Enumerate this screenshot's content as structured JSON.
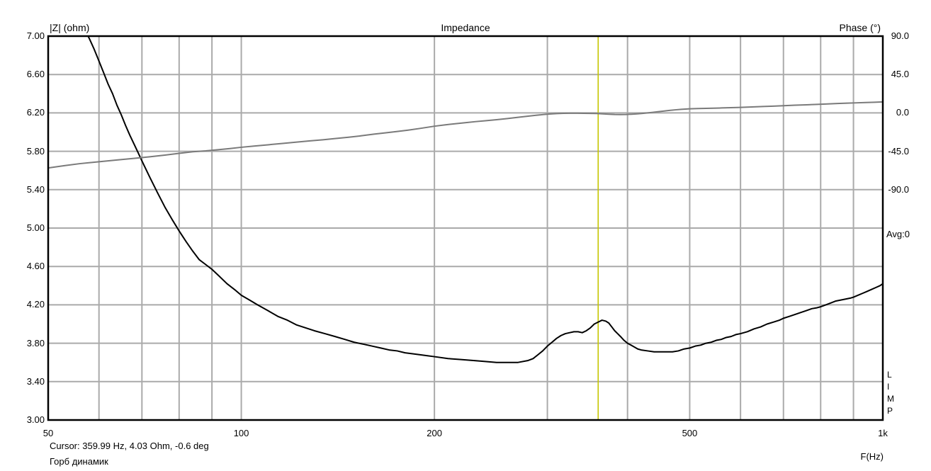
{
  "header": {
    "title": "Impedance",
    "left_axis_label": "|Z| (ohm)",
    "right_axis_label": "Phase (°)"
  },
  "side": {
    "avg_label": "Avg:0",
    "program_name": "LIMP"
  },
  "footer": {
    "x_axis_label": "F(Hz)",
    "cursor_readout": "Cursor: 359.99 Hz, 4.03 Ohm, -0.6 deg",
    "measurement_name": "Горб динамик"
  },
  "colors": {
    "background": "#ffffff",
    "grid": "#aaaaaa",
    "axis_border": "#000000",
    "impedance_curve": "#000000",
    "phase_curve": "#7a7a7a",
    "cursor_line": "#c6c600",
    "text": "#000000"
  },
  "chart_data": {
    "type": "line",
    "title": "Impedance",
    "xlabel": "F(Hz)",
    "ylabel_left": "|Z| (ohm)",
    "ylabel_right": "Phase (°)",
    "x_scale": "log",
    "x_range": [
      50,
      1000
    ],
    "y_left_range": [
      3.0,
      7.0
    ],
    "grid": true,
    "legend": "none",
    "x_ticks": [
      {
        "f": 50,
        "label": "50"
      },
      {
        "f": 100,
        "label": "100"
      },
      {
        "f": 200,
        "label": "200"
      },
      {
        "f": 500,
        "label": "500"
      },
      {
        "f": 1000,
        "label": "1k"
      }
    ],
    "x_gridlines": [
      60,
      70,
      80,
      90,
      100,
      200,
      300,
      400,
      500,
      600,
      700,
      800,
      900
    ],
    "y_left_ticks": [
      {
        "v": 7.0,
        "label": "7.00"
      },
      {
        "v": 6.6,
        "label": "6.60"
      },
      {
        "v": 6.2,
        "label": "6.20"
      },
      {
        "v": 5.8,
        "label": "5.80"
      },
      {
        "v": 5.4,
        "label": "5.40"
      },
      {
        "v": 5.0,
        "label": "5.00"
      },
      {
        "v": 4.6,
        "label": "4.60"
      },
      {
        "v": 4.2,
        "label": "4.20"
      },
      {
        "v": 3.8,
        "label": "3.80"
      },
      {
        "v": 3.4,
        "label": "3.40"
      },
      {
        "v": 3.0,
        "label": "3.00"
      }
    ],
    "y_gridlines_ohm": [
      6.6,
      6.2,
      5.8,
      5.4,
      5.0,
      4.6,
      4.2,
      3.8,
      3.4
    ],
    "y_right_ticks": [
      {
        "p": 90,
        "label": "90.0"
      },
      {
        "p": 45,
        "label": "45.0"
      },
      {
        "p": 0,
        "label": "0.0"
      },
      {
        "p": -45,
        "label": "-45.0"
      },
      {
        "p": -90,
        "label": "-90.0"
      }
    ],
    "phase_zero_at_ohm": 6.2,
    "ohm_per_45deg": 0.4,
    "cursor": {
      "frequency_hz": 359.99,
      "impedance_ohm": 4.03,
      "phase_deg": -0.6
    },
    "series": [
      {
        "name": "impedance_magnitude_ohm",
        "axis": "left",
        "color_key": "impedance_curve",
        "points": [
          [
            57.5,
            7.02
          ],
          [
            58,
            6.97
          ],
          [
            59,
            6.86
          ],
          [
            60,
            6.74
          ],
          [
            61,
            6.62
          ],
          [
            62,
            6.5
          ],
          [
            63,
            6.4
          ],
          [
            64,
            6.28
          ],
          [
            65,
            6.18
          ],
          [
            66,
            6.07
          ],
          [
            67,
            5.97
          ],
          [
            68,
            5.88
          ],
          [
            69,
            5.79
          ],
          [
            70,
            5.7
          ],
          [
            72,
            5.53
          ],
          [
            74,
            5.37
          ],
          [
            76,
            5.22
          ],
          [
            78,
            5.09
          ],
          [
            80,
            4.97
          ],
          [
            82,
            4.86
          ],
          [
            84,
            4.76
          ],
          [
            86,
            4.67
          ],
          [
            88,
            4.62
          ],
          [
            90,
            4.57
          ],
          [
            92,
            4.51
          ],
          [
            95,
            4.42
          ],
          [
            98,
            4.35
          ],
          [
            100,
            4.3
          ],
          [
            103,
            4.25
          ],
          [
            106,
            4.2
          ],
          [
            110,
            4.14
          ],
          [
            114,
            4.08
          ],
          [
            118,
            4.04
          ],
          [
            122,
            3.99
          ],
          [
            126,
            3.96
          ],
          [
            130,
            3.93
          ],
          [
            135,
            3.9
          ],
          [
            140,
            3.87
          ],
          [
            145,
            3.84
          ],
          [
            150,
            3.81
          ],
          [
            155,
            3.79
          ],
          [
            160,
            3.77
          ],
          [
            165,
            3.75
          ],
          [
            170,
            3.73
          ],
          [
            175,
            3.72
          ],
          [
            180,
            3.7
          ],
          [
            185,
            3.69
          ],
          [
            190,
            3.68
          ],
          [
            195,
            3.67
          ],
          [
            200,
            3.66
          ],
          [
            210,
            3.64
          ],
          [
            220,
            3.63
          ],
          [
            230,
            3.62
          ],
          [
            240,
            3.61
          ],
          [
            250,
            3.6
          ],
          [
            260,
            3.6
          ],
          [
            270,
            3.6
          ],
          [
            280,
            3.62
          ],
          [
            285,
            3.64
          ],
          [
            290,
            3.68
          ],
          [
            295,
            3.72
          ],
          [
            300,
            3.77
          ],
          [
            305,
            3.81
          ],
          [
            310,
            3.85
          ],
          [
            315,
            3.88
          ],
          [
            320,
            3.9
          ],
          [
            325,
            3.91
          ],
          [
            330,
            3.92
          ],
          [
            335,
            3.92
          ],
          [
            340,
            3.91
          ],
          [
            345,
            3.93
          ],
          [
            350,
            3.96
          ],
          [
            355,
            4.0
          ],
          [
            360,
            4.02
          ],
          [
            365,
            4.04
          ],
          [
            370,
            4.03
          ],
          [
            374,
            4.01
          ],
          [
            378,
            3.97
          ],
          [
            382,
            3.93
          ],
          [
            386,
            3.9
          ],
          [
            390,
            3.87
          ],
          [
            395,
            3.83
          ],
          [
            400,
            3.8
          ],
          [
            405,
            3.78
          ],
          [
            410,
            3.76
          ],
          [
            415,
            3.74
          ],
          [
            420,
            3.73
          ],
          [
            430,
            3.72
          ],
          [
            440,
            3.71
          ],
          [
            450,
            3.71
          ],
          [
            460,
            3.71
          ],
          [
            470,
            3.71
          ],
          [
            480,
            3.72
          ],
          [
            490,
            3.74
          ],
          [
            500,
            3.75
          ],
          [
            510,
            3.77
          ],
          [
            520,
            3.78
          ],
          [
            530,
            3.8
          ],
          [
            540,
            3.81
          ],
          [
            550,
            3.83
          ],
          [
            560,
            3.84
          ],
          [
            570,
            3.86
          ],
          [
            580,
            3.87
          ],
          [
            590,
            3.89
          ],
          [
            600,
            3.9
          ],
          [
            615,
            3.92
          ],
          [
            630,
            3.95
          ],
          [
            645,
            3.97
          ],
          [
            660,
            4.0
          ],
          [
            675,
            4.02
          ],
          [
            690,
            4.04
          ],
          [
            700,
            4.06
          ],
          [
            715,
            4.08
          ],
          [
            730,
            4.1
          ],
          [
            745,
            4.12
          ],
          [
            760,
            4.14
          ],
          [
            775,
            4.16
          ],
          [
            790,
            4.17
          ],
          [
            800,
            4.18
          ],
          [
            815,
            4.2
          ],
          [
            830,
            4.22
          ],
          [
            845,
            4.24
          ],
          [
            860,
            4.25
          ],
          [
            875,
            4.26
          ],
          [
            890,
            4.27
          ],
          [
            900,
            4.28
          ],
          [
            915,
            4.3
          ],
          [
            930,
            4.32
          ],
          [
            945,
            4.34
          ],
          [
            960,
            4.36
          ],
          [
            975,
            4.38
          ],
          [
            990,
            4.4
          ],
          [
            1000,
            4.42
          ]
        ]
      },
      {
        "name": "phase_deg",
        "axis": "right",
        "color_key": "phase_curve",
        "points": [
          [
            50,
            -64.5
          ],
          [
            53,
            -61.8
          ],
          [
            56,
            -59.5
          ],
          [
            60,
            -57.3
          ],
          [
            64,
            -55.2
          ],
          [
            68,
            -53.3
          ],
          [
            72,
            -51.5
          ],
          [
            76,
            -49.5
          ],
          [
            80,
            -47.4
          ],
          [
            84,
            -45.5
          ],
          [
            88,
            -44.5
          ],
          [
            92,
            -43.2
          ],
          [
            96,
            -41.8
          ],
          [
            100,
            -40.3
          ],
          [
            105,
            -38.8
          ],
          [
            110,
            -37.4
          ],
          [
            116,
            -35.8
          ],
          [
            122,
            -34.2
          ],
          [
            128,
            -32.8
          ],
          [
            134,
            -31.5
          ],
          [
            140,
            -30.1
          ],
          [
            147,
            -28.5
          ],
          [
            154,
            -26.8
          ],
          [
            161,
            -24.9
          ],
          [
            168,
            -23.3
          ],
          [
            175,
            -21.8
          ],
          [
            182,
            -20.2
          ],
          [
            190,
            -18.2
          ],
          [
            200,
            -15.6
          ],
          [
            208,
            -14.0
          ],
          [
            216,
            -12.6
          ],
          [
            224,
            -11.4
          ],
          [
            232,
            -10.2
          ],
          [
            240,
            -9.2
          ],
          [
            250,
            -8.0
          ],
          [
            260,
            -6.6
          ],
          [
            270,
            -5.2
          ],
          [
            280,
            -3.8
          ],
          [
            288,
            -2.8
          ],
          [
            295,
            -2.0
          ],
          [
            302,
            -1.3
          ],
          [
            310,
            -0.8
          ],
          [
            318,
            -0.5
          ],
          [
            326,
            -0.4
          ],
          [
            334,
            -0.4
          ],
          [
            342,
            -0.5
          ],
          [
            350,
            -0.6
          ],
          [
            358,
            -0.7
          ],
          [
            366,
            -1.1
          ],
          [
            374,
            -1.5
          ],
          [
            382,
            -1.8
          ],
          [
            390,
            -1.9
          ],
          [
            398,
            -1.8
          ],
          [
            406,
            -1.5
          ],
          [
            414,
            -1.1
          ],
          [
            422,
            -0.6
          ],
          [
            430,
            0.0
          ],
          [
            438,
            0.7
          ],
          [
            446,
            1.4
          ],
          [
            455,
            2.1
          ],
          [
            465,
            2.9
          ],
          [
            475,
            3.6
          ],
          [
            485,
            4.2
          ],
          [
            500,
            4.8
          ],
          [
            515,
            5.1
          ],
          [
            530,
            5.3
          ],
          [
            545,
            5.5
          ],
          [
            560,
            5.8
          ],
          [
            580,
            6.1
          ],
          [
            600,
            6.5
          ],
          [
            625,
            7.0
          ],
          [
            650,
            7.5
          ],
          [
            675,
            7.9
          ],
          [
            700,
            8.4
          ],
          [
            730,
            9.0
          ],
          [
            760,
            9.5
          ],
          [
            790,
            10.0
          ],
          [
            820,
            10.5
          ],
          [
            850,
            11.0
          ],
          [
            880,
            11.4
          ],
          [
            910,
            11.8
          ],
          [
            940,
            12.2
          ],
          [
            970,
            12.5
          ],
          [
            1000,
            12.9
          ]
        ]
      }
    ]
  }
}
